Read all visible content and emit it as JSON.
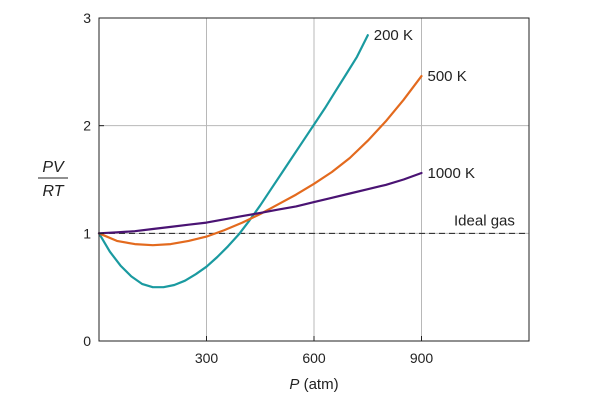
{
  "chart_data": {
    "type": "line",
    "title": "",
    "xlabel": {
      "var": "P",
      "unit": " (atm)"
    },
    "ylabel": {
      "numerator": "PV",
      "denominator": "RT"
    },
    "xlim": [
      0,
      1200
    ],
    "ylim": [
      0,
      3
    ],
    "xticks": [
      300,
      600,
      900
    ],
    "yticks": [
      0,
      1,
      2,
      3
    ],
    "grid": true,
    "series": [
      {
        "name": "200 K",
        "color": "#1a9aa0",
        "x": [
          0,
          30,
          60,
          90,
          120,
          150,
          180,
          210,
          240,
          270,
          300,
          330,
          360,
          390,
          420,
          450,
          480,
          510,
          540,
          570,
          600,
          630,
          660,
          690,
          720,
          750
        ],
        "y": [
          1.0,
          0.83,
          0.7,
          0.6,
          0.53,
          0.5,
          0.5,
          0.52,
          0.56,
          0.62,
          0.69,
          0.78,
          0.88,
          0.99,
          1.12,
          1.26,
          1.41,
          1.56,
          1.71,
          1.86,
          2.01,
          2.16,
          2.32,
          2.48,
          2.64,
          2.84
        ]
      },
      {
        "name": "500 K",
        "color": "#e36a1e",
        "x": [
          0,
          50,
          100,
          150,
          200,
          250,
          300,
          350,
          400,
          450,
          500,
          550,
          600,
          650,
          700,
          750,
          800,
          850,
          900
        ],
        "y": [
          1.0,
          0.93,
          0.9,
          0.89,
          0.9,
          0.93,
          0.97,
          1.03,
          1.1,
          1.18,
          1.27,
          1.36,
          1.46,
          1.57,
          1.7,
          1.86,
          2.04,
          2.24,
          2.46
        ]
      },
      {
        "name": "1000 K",
        "color": "#4a1373",
        "x": [
          0,
          50,
          100,
          150,
          200,
          250,
          300,
          350,
          400,
          450,
          500,
          550,
          600,
          650,
          700,
          750,
          800,
          850,
          900
        ],
        "y": [
          1.0,
          1.01,
          1.02,
          1.04,
          1.06,
          1.08,
          1.1,
          1.13,
          1.16,
          1.19,
          1.22,
          1.25,
          1.29,
          1.33,
          1.37,
          1.41,
          1.45,
          1.5,
          1.56
        ]
      }
    ],
    "reference": {
      "name": "Ideal gas",
      "y": 1
    }
  }
}
